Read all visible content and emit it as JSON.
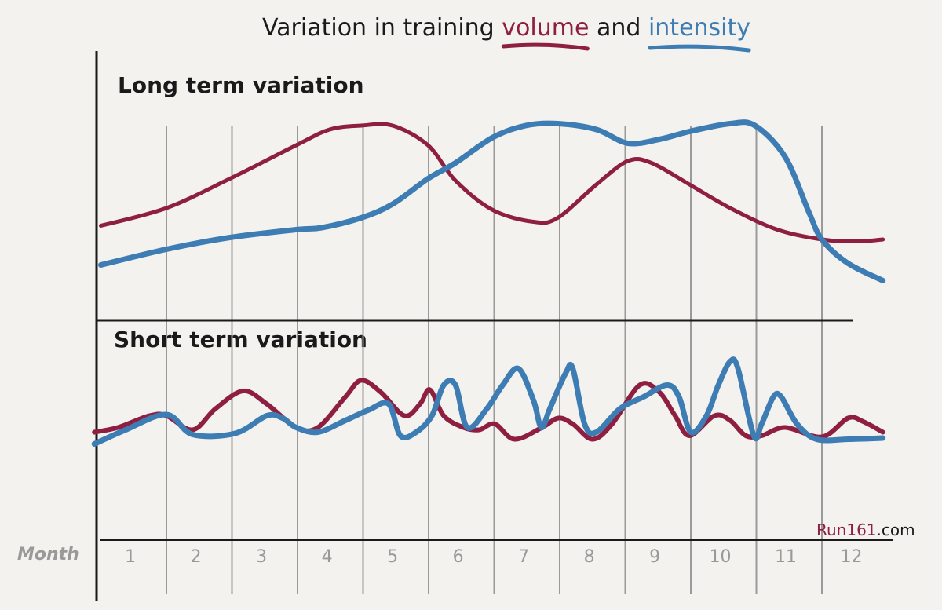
{
  "chart_data": [
    {
      "type": "line",
      "title": "Variation in training volume and intensity",
      "title_parts": {
        "prefix": "Variation in training",
        "volume": "volume",
        "and": "and",
        "intensity": "intensity"
      },
      "panel_label": "Long term variation",
      "xlabel": "Month",
      "x_ticks": [
        "1",
        "2",
        "3",
        "4",
        "5",
        "6",
        "7",
        "8",
        "9",
        "10",
        "11",
        "12"
      ],
      "xlim": [
        0,
        12
      ],
      "ylim": [
        0,
        100
      ],
      "grid": "vertical month dividers",
      "series": [
        {
          "name": "volume",
          "color": "#8e1f40",
          "x": [
            0,
            1.0,
            1.97,
            2.98,
            3.49,
            3.97,
            4.45,
            4.99,
            5.41,
            5.98,
            6.6,
            6.97,
            7.56,
            8.04,
            8.4,
            8.98,
            9.6,
            10.32,
            11.0,
            11.52,
            11.93
          ],
          "y": [
            45,
            54,
            69,
            86,
            94,
            96,
            96,
            86,
            68,
            53,
            47,
            49,
            66,
            78,
            77,
            66,
            54,
            43,
            38,
            37,
            38
          ]
        },
        {
          "name": "intensity",
          "color": "#3d7db3",
          "x": [
            0,
            1.0,
            1.97,
            2.98,
            3.37,
            3.97,
            4.45,
            4.99,
            5.41,
            5.98,
            6.48,
            6.97,
            7.56,
            8.04,
            8.52,
            8.98,
            9.6,
            9.98,
            10.44,
            10.8,
            11.0,
            11.39,
            11.93
          ],
          "y": [
            25,
            33,
            39,
            43,
            44,
            49,
            56,
            69,
            77,
            90,
            96,
            97,
            94,
            87,
            89,
            93,
            97,
            96,
            80,
            52,
            38,
            26,
            17
          ]
        }
      ]
    },
    {
      "type": "line",
      "panel_label": "Short term variation",
      "xlabel": "Month",
      "xlim": [
        0,
        12
      ],
      "ylim": [
        0,
        100
      ],
      "series": [
        {
          "name": "volume",
          "color": "#8e1f40",
          "x": [
            -0.1,
            0.26,
            0.74,
            1.0,
            1.4,
            1.75,
            2.17,
            2.53,
            2.98,
            3.31,
            3.73,
            3.97,
            4.27,
            4.63,
            4.87,
            5.02,
            5.23,
            5.53,
            5.77,
            6.01,
            6.31,
            6.73,
            6.98,
            7.2,
            7.5,
            7.8,
            8.22,
            8.52,
            8.76,
            8.98,
            9.36,
            9.6,
            9.84,
            10.08,
            10.44,
            11.0,
            11.4,
            11.63,
            11.93
          ],
          "y": [
            33,
            37,
            47,
            47,
            35,
            53,
            68,
            57,
            37,
            37,
            63,
            77,
            67,
            47,
            57,
            69,
            47,
            37,
            35,
            40,
            27,
            37,
            45,
            40,
            27,
            40,
            73,
            67,
            47,
            30,
            47,
            43,
            30,
            30,
            37,
            29,
            45,
            42,
            33
          ]
        },
        {
          "name": "intensity",
          "color": "#3d7db3",
          "x": [
            -0.1,
            0.38,
            1.0,
            1.4,
            2.05,
            2.53,
            2.77,
            2.98,
            3.31,
            3.73,
            4.09,
            4.39,
            4.57,
            4.81,
            5.05,
            5.23,
            5.41,
            5.59,
            5.89,
            6.13,
            6.37,
            6.6,
            6.72,
            6.85,
            7.09,
            7.2,
            7.38,
            7.56,
            7.92,
            8.28,
            8.64,
            8.82,
            9.0,
            9.24,
            9.42,
            9.6,
            9.72,
            9.96,
            10.08,
            10.26,
            10.38,
            10.62,
            10.92,
            11.4,
            11.93
          ],
          "y": [
            23,
            35,
            48,
            31,
            32,
            47,
            45,
            37,
            33,
            43,
            52,
            57,
            30,
            33,
            47,
            73,
            73,
            37,
            53,
            73,
            87,
            60,
            37,
            53,
            83,
            87,
            40,
            33,
            53,
            63,
            73,
            63,
            33,
            47,
            73,
            93,
            87,
            30,
            40,
            63,
            63,
            40,
            27,
            27,
            28
          ]
        }
      ]
    }
  ],
  "watermark": {
    "brand": "Run161",
    "suffix": ".com"
  }
}
